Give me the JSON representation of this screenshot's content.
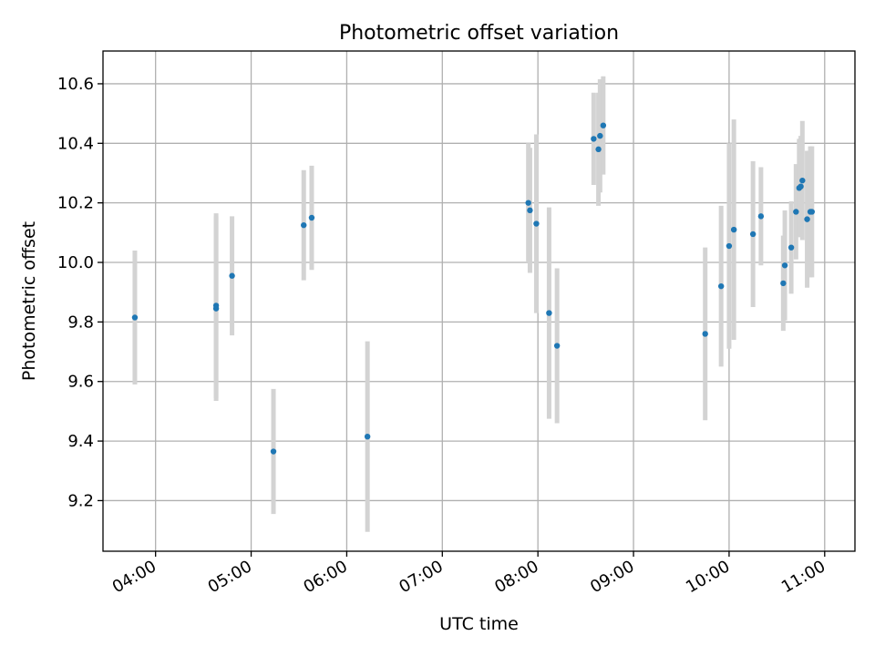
{
  "chart_data": {
    "type": "scatter",
    "title": "Photometric offset variation",
    "xlabel": "UTC time",
    "ylabel": "Photometric offset",
    "x_ticks": [
      "04:00",
      "05:00",
      "06:00",
      "07:00",
      "08:00",
      "09:00",
      "10:00",
      "11:00"
    ],
    "y_ticks": [
      "9.2",
      "9.4",
      "9.6",
      "9.8",
      "10.0",
      "10.2",
      "10.4",
      "10.6"
    ],
    "xlim": [
      "03:27",
      "11:19"
    ],
    "ylim": [
      9.03,
      10.71
    ],
    "grid": true,
    "marker_color": "#1f77b4",
    "errorbar_color": "#d3d3d3",
    "points": [
      {
        "t": "03:47",
        "y": 9.815,
        "err": 0.225
      },
      {
        "t": "04:38",
        "y": 9.845,
        "err": 0.31
      },
      {
        "t": "04:38",
        "y": 9.855,
        "err": 0.31
      },
      {
        "t": "04:48",
        "y": 9.955,
        "err": 0.2
      },
      {
        "t": "05:14",
        "y": 9.365,
        "err": 0.21
      },
      {
        "t": "05:33",
        "y": 10.125,
        "err": 0.185
      },
      {
        "t": "05:38",
        "y": 10.15,
        "err": 0.175
      },
      {
        "t": "06:13",
        "y": 9.415,
        "err": 0.32
      },
      {
        "t": "07:54",
        "y": 10.2,
        "err": 0.2
      },
      {
        "t": "07:55",
        "y": 10.175,
        "err": 0.21
      },
      {
        "t": "07:59",
        "y": 10.13,
        "err": 0.3
      },
      {
        "t": "08:07",
        "y": 9.83,
        "err": 0.355
      },
      {
        "t": "08:12",
        "y": 9.72,
        "err": 0.26
      },
      {
        "t": "08:35",
        "y": 10.415,
        "err": 0.155
      },
      {
        "t": "08:38",
        "y": 10.38,
        "err": 0.19
      },
      {
        "t": "08:39",
        "y": 10.425,
        "err": 0.19
      },
      {
        "t": "08:41",
        "y": 10.46,
        "err": 0.165
      },
      {
        "t": "09:45",
        "y": 9.76,
        "err": 0.29
      },
      {
        "t": "09:55",
        "y": 9.92,
        "err": 0.27
      },
      {
        "t": "10:00",
        "y": 10.055,
        "err": 0.345
      },
      {
        "t": "10:03",
        "y": 10.11,
        "err": 0.37
      },
      {
        "t": "10:15",
        "y": 10.095,
        "err": 0.245
      },
      {
        "t": "10:20",
        "y": 10.155,
        "err": 0.165
      },
      {
        "t": "10:34",
        "y": 9.93,
        "err": 0.16
      },
      {
        "t": "10:35",
        "y": 9.99,
        "err": 0.185
      },
      {
        "t": "10:39",
        "y": 10.05,
        "err": 0.155
      },
      {
        "t": "10:42",
        "y": 10.17,
        "err": 0.16
      },
      {
        "t": "10:44",
        "y": 10.25,
        "err": 0.165
      },
      {
        "t": "10:45",
        "y": 10.255,
        "err": 0.17
      },
      {
        "t": "10:46",
        "y": 10.275,
        "err": 0.2
      },
      {
        "t": "10:49",
        "y": 10.145,
        "err": 0.23
      },
      {
        "t": "10:51",
        "y": 10.17,
        "err": 0.22
      },
      {
        "t": "10:52",
        "y": 10.17,
        "err": 0.22
      }
    ]
  }
}
